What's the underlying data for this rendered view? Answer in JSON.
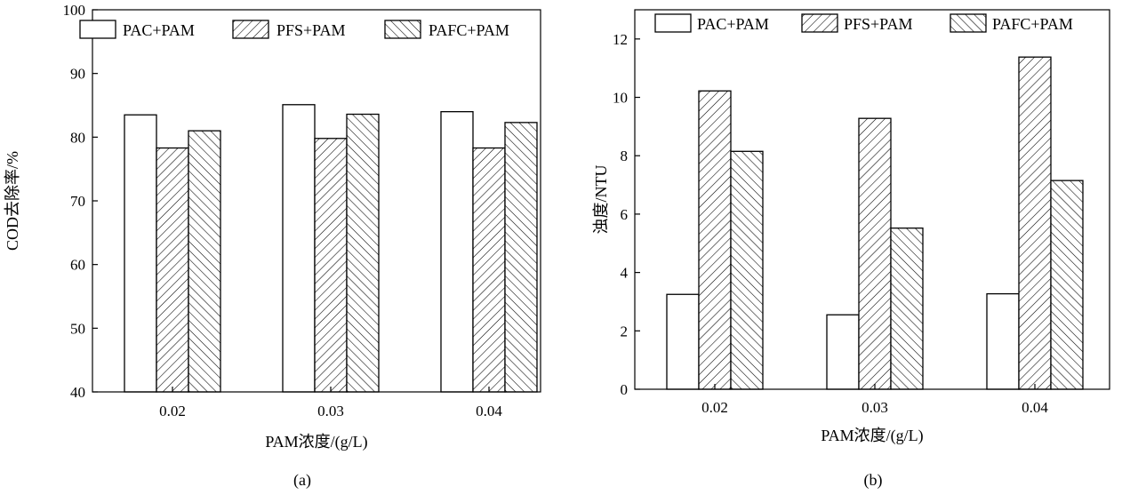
{
  "chart_data": [
    {
      "type": "bar",
      "categories": [
        "0.02",
        "0.03",
        "0.04"
      ],
      "series": [
        {
          "name": "PAC+PAM",
          "values": [
            83.5,
            85.1,
            84.0
          ]
        },
        {
          "name": "PFS+PAM",
          "values": [
            78.3,
            79.8,
            78.3
          ]
        },
        {
          "name": "PAFC+PAM",
          "values": [
            81.0,
            83.6,
            82.3
          ]
        }
      ],
      "xlabel": "PAM浓度/(g/L)",
      "ylabel": "COD去除率/%",
      "ylim": [
        40,
        100
      ],
      "yticks": [
        40,
        50,
        60,
        70,
        80,
        90,
        100
      ],
      "caption": "(a)",
      "legend_position": "top",
      "grid": false
    },
    {
      "type": "bar",
      "categories": [
        "0.02",
        "0.03",
        "0.04"
      ],
      "series": [
        {
          "name": "PAC+PAM",
          "values": [
            3.25,
            2.55,
            3.27
          ]
        },
        {
          "name": "PFS+PAM",
          "values": [
            10.22,
            9.28,
            11.38
          ]
        },
        {
          "name": "PAFC+PAM",
          "values": [
            8.15,
            5.52,
            7.15
          ]
        }
      ],
      "xlabel": "PAM浓度/(g/L)",
      "ylabel": "浊度/NTU",
      "ylim": [
        0,
        13
      ],
      "yticks": [
        0,
        2,
        4,
        6,
        8,
        10,
        12
      ],
      "caption": "(b)",
      "legend_position": "top",
      "grid": false
    }
  ],
  "patterns": [
    "none",
    "diagonal-up",
    "diagonal-down"
  ]
}
